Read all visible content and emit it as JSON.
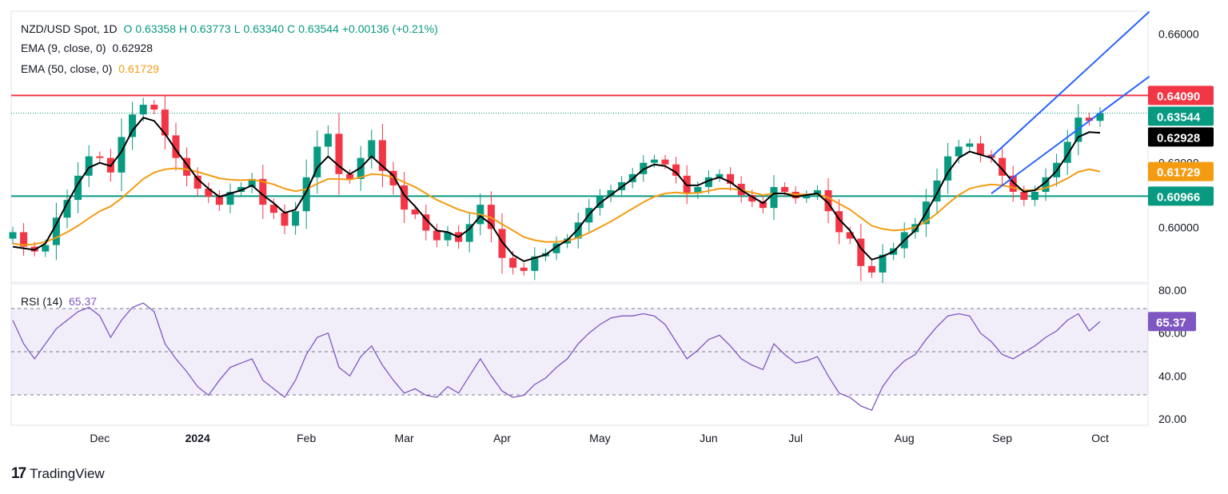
{
  "header": {
    "symbol": "NZD/USD Spot, 1D",
    "open_label": "O",
    "open": "0.63358",
    "high_label": "H",
    "high": "0.63773",
    "low_label": "L",
    "low": "0.63340",
    "close_label": "C",
    "close": "0.63544",
    "change": "+0.00136 (+0.21%)",
    "ema9_label": "EMA (9, close, 0)",
    "ema9_value": "0.62928",
    "ema50_label": "EMA (50, close, 0)",
    "ema50_value": "0.61729",
    "rsi_label": "RSI (14)",
    "rsi_value": "65.37"
  },
  "footer": {
    "brand": "TradingView"
  },
  "colors": {
    "bull": "#089981",
    "bear": "#f23645",
    "ema9": "#000000",
    "ema50": "#f39c12",
    "resistance": "#f23645",
    "support": "#089981",
    "channel": "#2962ff",
    "rsi": "#7e57c2"
  },
  "chart_data": [
    {
      "type": "candlestick",
      "title": "NZD/USD Spot, 1D",
      "x_ticks": [
        "Dec",
        "2024",
        "Feb",
        "Mar",
        "Apr",
        "May",
        "Jun",
        "Jul",
        "Aug",
        "Sep",
        "Oct"
      ],
      "y_ticks": [
        "0.66000",
        "0.62000",
        "0.60000"
      ],
      "ylim": [
        0.583,
        0.667
      ],
      "horizontal_levels": [
        {
          "label": "0.64090",
          "value": 0.6409,
          "color": "#f23645"
        },
        {
          "label": "0.60966",
          "value": 0.60966,
          "color": "#089981"
        }
      ],
      "price_badges": [
        {
          "label": "0.63544",
          "value": 0.63544,
          "color": "#089981"
        },
        {
          "label": "0.62928",
          "value": 0.62928,
          "color": "#000000"
        },
        {
          "label": "0.61729",
          "value": 0.61729,
          "color": "#f39c12"
        }
      ],
      "close_series": [
        0.5985,
        0.594,
        0.5925,
        0.5945,
        0.603,
        0.6085,
        0.616,
        0.622,
        0.6215,
        0.617,
        0.628,
        0.635,
        0.638,
        0.6365,
        0.6285,
        0.6215,
        0.616,
        0.612,
        0.6095,
        0.607,
        0.611,
        0.6125,
        0.615,
        0.607,
        0.6045,
        0.6005,
        0.605,
        0.6155,
        0.625,
        0.629,
        0.6165,
        0.615,
        0.6215,
        0.627,
        0.6175,
        0.613,
        0.6055,
        0.604,
        0.599,
        0.596,
        0.5985,
        0.5955,
        0.601,
        0.607,
        0.5995,
        0.5905,
        0.5875,
        0.5865,
        0.591,
        0.592,
        0.595,
        0.5965,
        0.6015,
        0.606,
        0.6095,
        0.6115,
        0.614,
        0.6165,
        0.62,
        0.621,
        0.6195,
        0.616,
        0.6105,
        0.6125,
        0.6155,
        0.6165,
        0.6135,
        0.61,
        0.608,
        0.606,
        0.6125,
        0.611,
        0.609,
        0.61,
        0.6115,
        0.605,
        0.5985,
        0.5965,
        0.588,
        0.586,
        0.5915,
        0.5935,
        0.5985,
        0.601,
        0.608,
        0.6145,
        0.622,
        0.625,
        0.626,
        0.6225,
        0.6215,
        0.616,
        0.611,
        0.6085,
        0.611,
        0.6155,
        0.62,
        0.6265,
        0.634,
        0.633,
        0.6354
      ],
      "ema9_series": [
        0.594,
        0.5935,
        0.593,
        0.595,
        0.601,
        0.6075,
        0.6135,
        0.6185,
        0.62,
        0.619,
        0.6235,
        0.63,
        0.634,
        0.633,
        0.629,
        0.624,
        0.6195,
        0.615,
        0.612,
        0.6095,
        0.6105,
        0.6115,
        0.613,
        0.61,
        0.6075,
        0.6045,
        0.6055,
        0.611,
        0.6185,
        0.622,
        0.619,
        0.6165,
        0.6185,
        0.622,
        0.619,
        0.616,
        0.61,
        0.6065,
        0.6025,
        0.599,
        0.5985,
        0.597,
        0.5995,
        0.6035,
        0.601,
        0.5955,
        0.5915,
        0.5895,
        0.5905,
        0.5915,
        0.594,
        0.596,
        0.5995,
        0.604,
        0.6075,
        0.61,
        0.6125,
        0.615,
        0.618,
        0.6195,
        0.619,
        0.617,
        0.613,
        0.613,
        0.6145,
        0.6155,
        0.614,
        0.6115,
        0.6095,
        0.6075,
        0.6105,
        0.6105,
        0.6095,
        0.61,
        0.6105,
        0.6075,
        0.6025,
        0.599,
        0.5935,
        0.59,
        0.591,
        0.5925,
        0.596,
        0.599,
        0.6045,
        0.6105,
        0.617,
        0.6215,
        0.6235,
        0.6225,
        0.6215,
        0.618,
        0.614,
        0.611,
        0.6115,
        0.614,
        0.6175,
        0.6225,
        0.628,
        0.6295,
        0.6293
      ],
      "ema50_series": [
        0.595,
        0.5945,
        0.5948,
        0.5955,
        0.5968,
        0.5985,
        0.6005,
        0.6028,
        0.605,
        0.6065,
        0.609,
        0.612,
        0.615,
        0.617,
        0.618,
        0.6183,
        0.618,
        0.6172,
        0.6162,
        0.6152,
        0.6148,
        0.6146,
        0.6148,
        0.6142,
        0.6133,
        0.612,
        0.6112,
        0.6118,
        0.6135,
        0.615,
        0.615,
        0.6148,
        0.6155,
        0.6165,
        0.6163,
        0.6155,
        0.614,
        0.6125,
        0.6105,
        0.6085,
        0.607,
        0.6055,
        0.6045,
        0.604,
        0.603,
        0.601,
        0.599,
        0.597,
        0.596,
        0.5955,
        0.5955,
        0.5958,
        0.5968,
        0.5983,
        0.6,
        0.6018,
        0.6038,
        0.6058,
        0.6078,
        0.6095,
        0.6105,
        0.6108,
        0.6105,
        0.6107,
        0.6113,
        0.612,
        0.612,
        0.6115,
        0.6108,
        0.61,
        0.6105,
        0.6105,
        0.6102,
        0.6102,
        0.6103,
        0.6092,
        0.6073,
        0.6055,
        0.603,
        0.6005,
        0.5995,
        0.599,
        0.5993,
        0.6,
        0.6018,
        0.6043,
        0.6073,
        0.61,
        0.612,
        0.6128,
        0.6133,
        0.613,
        0.6123,
        0.6115,
        0.6115,
        0.6122,
        0.6135,
        0.6152,
        0.6172,
        0.618,
        0.6173
      ],
      "channel_lines": [
        {
          "from": [
            0.6105,
            90
          ],
          "to": [
            0.638,
            101
          ]
        },
        {
          "from": [
            0.6218,
            90
          ],
          "to": [
            0.656,
            101
          ]
        }
      ]
    },
    {
      "type": "line",
      "title": "RSI (14)",
      "y_ticks": [
        "80.00",
        "60.00",
        "40.00",
        "20.00"
      ],
      "ylim": [
        17,
        83
      ],
      "bands": [
        70,
        50,
        30
      ],
      "current": "65.37",
      "values": [
        66,
        55,
        48,
        55,
        62,
        66,
        70,
        72,
        68,
        58,
        66,
        72,
        74,
        70,
        55,
        48,
        42,
        35,
        31,
        38,
        44,
        46,
        48,
        38,
        34,
        30,
        38,
        50,
        58,
        60,
        44,
        40,
        49,
        54,
        45,
        38,
        32,
        34,
        31,
        30,
        35,
        32,
        40,
        48,
        40,
        33,
        30,
        31,
        36,
        39,
        44,
        48,
        55,
        60,
        64,
        67,
        68,
        68,
        69,
        68,
        64,
        56,
        48,
        52,
        57,
        59,
        54,
        48,
        45,
        43,
        55,
        50,
        46,
        47,
        49,
        40,
        32,
        30,
        26,
        24,
        35,
        42,
        47,
        50,
        57,
        63,
        68,
        69,
        68,
        60,
        56,
        50,
        48,
        51,
        54,
        58,
        61,
        66,
        69,
        61,
        65.37
      ]
    }
  ]
}
